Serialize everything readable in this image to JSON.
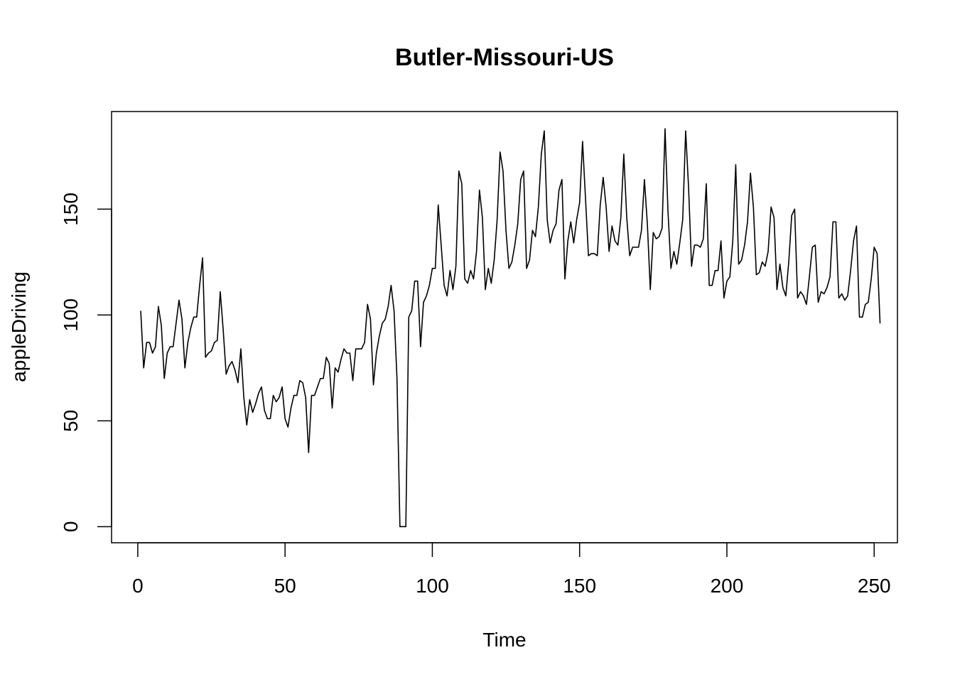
{
  "chart_data": {
    "type": "line",
    "title": "Butler-Missouri-US",
    "xlabel": "Time",
    "ylabel": "appleDriving",
    "xlim": [
      -8.9,
      257.9
    ],
    "ylim": [
      -7.6,
      196.1
    ],
    "xticks": [
      0,
      50,
      100,
      150,
      200,
      250
    ],
    "yticks": [
      0,
      50,
      100,
      150
    ],
    "grid": false,
    "series": [
      {
        "x_start": 1,
        "values": [
          102,
          75,
          87,
          87,
          82,
          85,
          104,
          95,
          70,
          82,
          85,
          85,
          96,
          107,
          98,
          75,
          87,
          94,
          99,
          99,
          114,
          127,
          80,
          82,
          83,
          87,
          88,
          111,
          93,
          72,
          76,
          78,
          74,
          68,
          84,
          61,
          48,
          60,
          54,
          58,
          63,
          66,
          55,
          51,
          51,
          62,
          59,
          61,
          66,
          51,
          47,
          56,
          62,
          62,
          69,
          68,
          61,
          35,
          62,
          62,
          66,
          70,
          70,
          80,
          77,
          56,
          75,
          73,
          79,
          84,
          82,
          82,
          69,
          84,
          84,
          84,
          87,
          105,
          98,
          67,
          82,
          90,
          96,
          98,
          104,
          114,
          102,
          70,
          0,
          0,
          0,
          99,
          102,
          116,
          116,
          85,
          106,
          109,
          114,
          122,
          122,
          152,
          133,
          114,
          109,
          121,
          112,
          123,
          168,
          162,
          117,
          115,
          121,
          117,
          130,
          159,
          146,
          112,
          122,
          115,
          126,
          145,
          177,
          168,
          140,
          122,
          125,
          133,
          143,
          164,
          168,
          122,
          126,
          140,
          137,
          151,
          176,
          187,
          145,
          134,
          140,
          143,
          159,
          164,
          117,
          135,
          144,
          134,
          145,
          153,
          182,
          155,
          128,
          129,
          129,
          128,
          152,
          165,
          151,
          130,
          142,
          135,
          133,
          146,
          176,
          146,
          128,
          132,
          132,
          132,
          140,
          164,
          143,
          112,
          139,
          136,
          137,
          141,
          188,
          149,
          122,
          130,
          124,
          134,
          145,
          187,
          160,
          123,
          133,
          133,
          132,
          136,
          162,
          114,
          114,
          121,
          121,
          135,
          108,
          116,
          118,
          135,
          171,
          124,
          126,
          133,
          144,
          167,
          151,
          119,
          120,
          125,
          123,
          130,
          151,
          146,
          112,
          124,
          113,
          109,
          125,
          147,
          150,
          108,
          111,
          109,
          105,
          118,
          132,
          133,
          106,
          111,
          110,
          113,
          118,
          144,
          144,
          108,
          110,
          107,
          109,
          121,
          135,
          142,
          99,
          99,
          105,
          106,
          117,
          132,
          129,
          96
        ]
      }
    ]
  }
}
